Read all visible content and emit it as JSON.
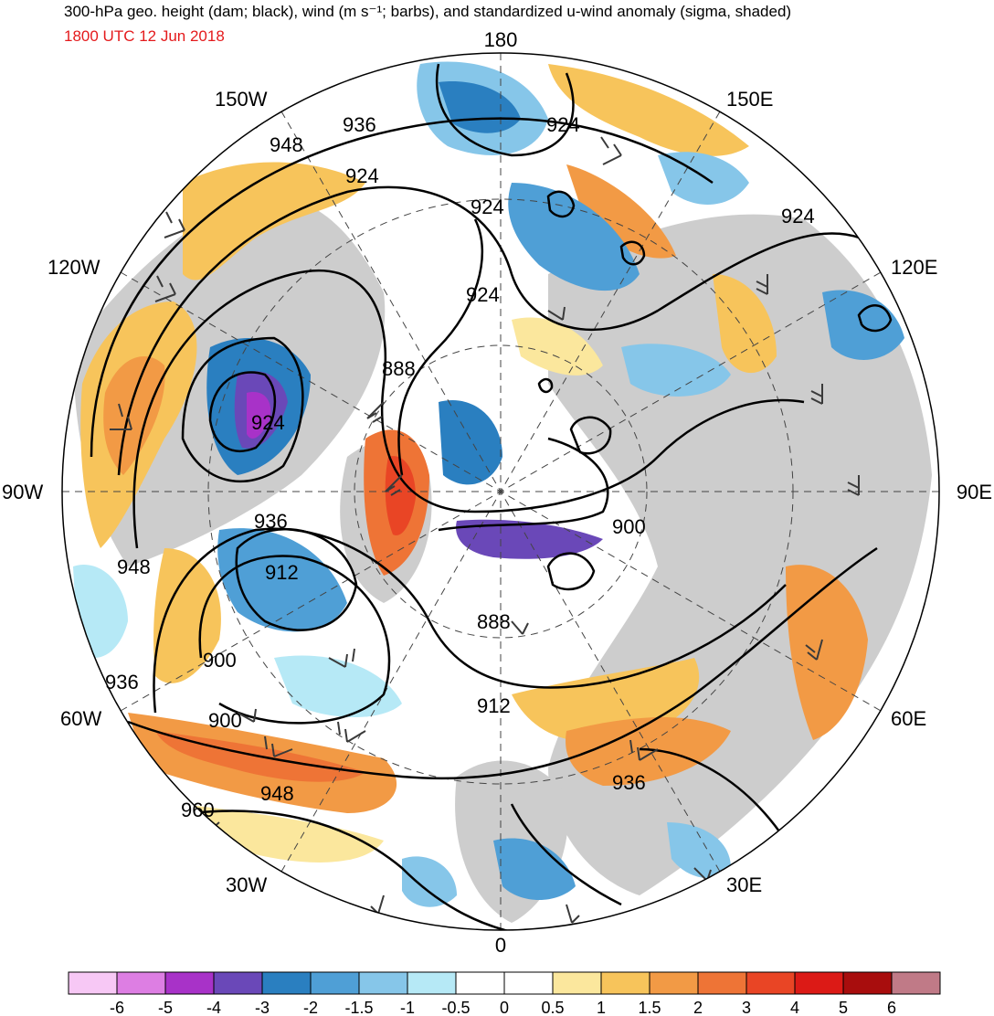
{
  "title": "300-hPa geo. height (dam; black), wind (m s⁻¹; barbs), and standardized u-wind anomaly (sigma, shaded)",
  "subtitle": "1800 UTC 12 Jun 2018",
  "longitude_labels": {
    "top": "180",
    "bottom": "0",
    "left": "90W",
    "right": "90E",
    "upper_left_150": "150W",
    "upper_left_120": "120W",
    "upper_right_150": "150E",
    "upper_right_120": "120E",
    "lower_left_60": "60W",
    "lower_left_30": "30W",
    "lower_right_60": "60E",
    "lower_right_30": "30E"
  },
  "contour_labels": [
    "936",
    "948",
    "924",
    "924",
    "924",
    "924",
    "924",
    "888",
    "924",
    "936",
    "912",
    "948",
    "900",
    "936",
    "900",
    "900",
    "888",
    "912",
    "948",
    "936",
    "960"
  ],
  "colorbar": {
    "labels": [
      "-6",
      "-5",
      "-4",
      "-3",
      "-2",
      "-1.5",
      "-1",
      "-0.5",
      "0",
      "0.5",
      "1",
      "1.5",
      "2",
      "3",
      "4",
      "5",
      "6"
    ],
    "colors": [
      "#f7c8f5",
      "#dd7ee3",
      "#a832c8",
      "#6a48b8",
      "#2a7fc0",
      "#4f9fd6",
      "#86c6e9",
      "#b6e9f6",
      "#ffffff",
      "#ffffff",
      "#fbe79d",
      "#f7c45b",
      "#f29a45",
      "#ee7436",
      "#e94525",
      "#dc1a16",
      "#a80d0d",
      "#c07a87"
    ]
  },
  "colors": {
    "land": "#c8c8c8",
    "contour": "#000000",
    "barb": "#3a3a3a",
    "subtitle": "#e41a1c"
  }
}
